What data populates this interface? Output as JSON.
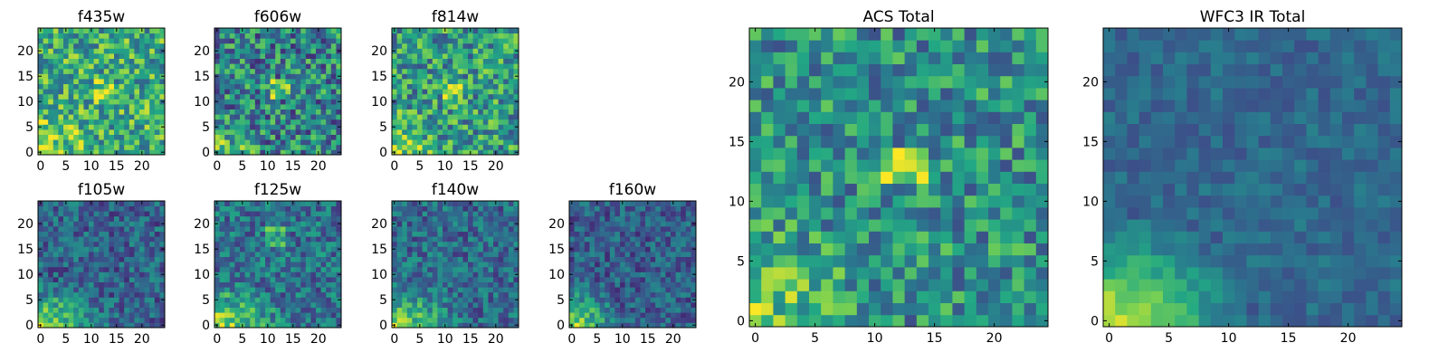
{
  "figure": {
    "colormap": "viridis",
    "colormap_stops": [
      "#440154",
      "#414487",
      "#2a788e",
      "#22a884",
      "#7ad151",
      "#fde725"
    ],
    "background": "#ffffff"
  },
  "chart_data": [
    {
      "type": "heatmap",
      "title": "f435w",
      "grid_size": 25,
      "seed": 11,
      "xticks": [
        0,
        5,
        10,
        15,
        20
      ],
      "yticks": [
        0,
        5,
        10,
        15,
        20
      ],
      "xlim": [
        -0.5,
        24.5
      ],
      "ylim": [
        -0.5,
        24.5
      ],
      "base": 0.62,
      "noise": 0.3,
      "gradient_strength": 0.2,
      "grad_x": [
        0,
        12
      ],
      "grad_y": [
        4,
        10
      ],
      "bright_patch": {
        "x": [
          11,
          14
        ],
        "y": [
          10,
          14
        ],
        "boost": 0.2
      },
      "grid": false,
      "colorbar": false
    },
    {
      "type": "heatmap",
      "title": "f606w",
      "grid_size": 25,
      "seed": 23,
      "xticks": [
        0,
        5,
        10,
        15,
        20
      ],
      "yticks": [
        0,
        5,
        10,
        15,
        20
      ],
      "xlim": [
        -0.5,
        24.5
      ],
      "ylim": [
        -0.5,
        24.5
      ],
      "base": 0.45,
      "noise": 0.32,
      "gradient_strength": 0.35,
      "grad_x": [
        0,
        10
      ],
      "grad_y": [
        0,
        8
      ],
      "bright_patch": {
        "x": [
          11,
          14
        ],
        "y": [
          11,
          14
        ],
        "boost": 0.3
      },
      "grid": false,
      "colorbar": false
    },
    {
      "type": "heatmap",
      "title": "f814w",
      "grid_size": 25,
      "seed": 37,
      "xticks": [
        0,
        5,
        10,
        15,
        20
      ],
      "yticks": [
        0,
        5,
        10,
        15,
        20
      ],
      "xlim": [
        -0.5,
        24.5
      ],
      "ylim": [
        -0.5,
        24.5
      ],
      "base": 0.55,
      "noise": 0.3,
      "gradient_strength": 0.3,
      "grad_x": [
        0,
        10
      ],
      "grad_y": [
        0,
        10
      ],
      "bright_patch": {
        "x": [
          10,
          13
        ],
        "y": [
          9,
          13
        ],
        "boost": 0.25
      },
      "grid": false,
      "colorbar": false
    },
    {
      "type": "heatmap",
      "title": "f105w",
      "grid_size": 25,
      "seed": 41,
      "xticks": [
        0,
        5,
        10,
        15,
        20
      ],
      "yticks": [
        0,
        5,
        10,
        15,
        20
      ],
      "xlim": [
        -0.5,
        24.5
      ],
      "ylim": [
        -0.5,
        24.5
      ],
      "base": 0.32,
      "noise": 0.2,
      "gradient_strength": 0.55,
      "grad_x": [
        0,
        14
      ],
      "grad_y": [
        0,
        9
      ],
      "bright_patch": null,
      "grid": false,
      "colorbar": false
    },
    {
      "type": "heatmap",
      "title": "f125w",
      "grid_size": 25,
      "seed": 53,
      "xticks": [
        0,
        5,
        10,
        15,
        20
      ],
      "yticks": [
        0,
        5,
        10,
        15,
        20
      ],
      "xlim": [
        -0.5,
        24.5
      ],
      "ylim": [
        -0.5,
        24.5
      ],
      "base": 0.38,
      "noise": 0.22,
      "gradient_strength": 0.5,
      "grad_x": [
        0,
        14
      ],
      "grad_y": [
        0,
        9
      ],
      "bright_patch": {
        "x": [
          10,
          13
        ],
        "y": [
          16,
          19
        ],
        "boost": 0.25
      },
      "grid": false,
      "colorbar": false
    },
    {
      "type": "heatmap",
      "title": "f140w",
      "grid_size": 25,
      "seed": 67,
      "xticks": [
        0,
        5,
        10,
        15,
        20
      ],
      "yticks": [
        0,
        5,
        10,
        15,
        20
      ],
      "xlim": [
        -0.5,
        24.5
      ],
      "ylim": [
        -0.5,
        24.5
      ],
      "base": 0.35,
      "noise": 0.2,
      "gradient_strength": 0.5,
      "grad_x": [
        0,
        14
      ],
      "grad_y": [
        0,
        9
      ],
      "bright_patch": null,
      "grid": false,
      "colorbar": false
    },
    {
      "type": "heatmap",
      "title": "f160w",
      "grid_size": 25,
      "seed": 79,
      "xticks": [
        0,
        5,
        10,
        15,
        20
      ],
      "yticks": [
        0,
        5,
        10,
        15,
        20
      ],
      "xlim": [
        -0.5,
        24.5
      ],
      "ylim": [
        -0.5,
        24.5
      ],
      "base": 0.3,
      "noise": 0.18,
      "gradient_strength": 0.55,
      "grad_x": [
        0,
        11
      ],
      "grad_y": [
        0,
        9
      ],
      "bright_patch": null,
      "grid": false,
      "colorbar": false
    },
    {
      "type": "heatmap",
      "title": "ACS Total",
      "grid_size": 25,
      "seed": 97,
      "xticks": [
        0,
        5,
        10,
        15,
        20
      ],
      "yticks": [
        0,
        5,
        10,
        15,
        20
      ],
      "xlim": [
        -0.5,
        24.5
      ],
      "ylim": [
        -0.5,
        24.5
      ],
      "base": 0.5,
      "noise": 0.26,
      "gradient_strength": 0.3,
      "grad_x": [
        0,
        10
      ],
      "grad_y": [
        0,
        10
      ],
      "bright_patch": {
        "x": [
          11,
          14
        ],
        "y": [
          12,
          14
        ],
        "boost": 0.35
      },
      "grid": false,
      "colorbar": false
    },
    {
      "type": "heatmap",
      "title": "WFC3 IR Total",
      "grid_size": 25,
      "seed": 101,
      "xticks": [
        0,
        5,
        10,
        15,
        20
      ],
      "yticks": [
        0,
        5,
        10,
        15,
        20
      ],
      "xlim": [
        -0.5,
        24.5
      ],
      "ylim": [
        -0.5,
        24.5
      ],
      "base": 0.34,
      "noise": 0.1,
      "gradient_strength": 0.6,
      "grad_x": [
        0,
        12
      ],
      "grad_y": [
        0,
        9
      ],
      "bright_patch": null,
      "grid": false,
      "colorbar": false
    }
  ]
}
